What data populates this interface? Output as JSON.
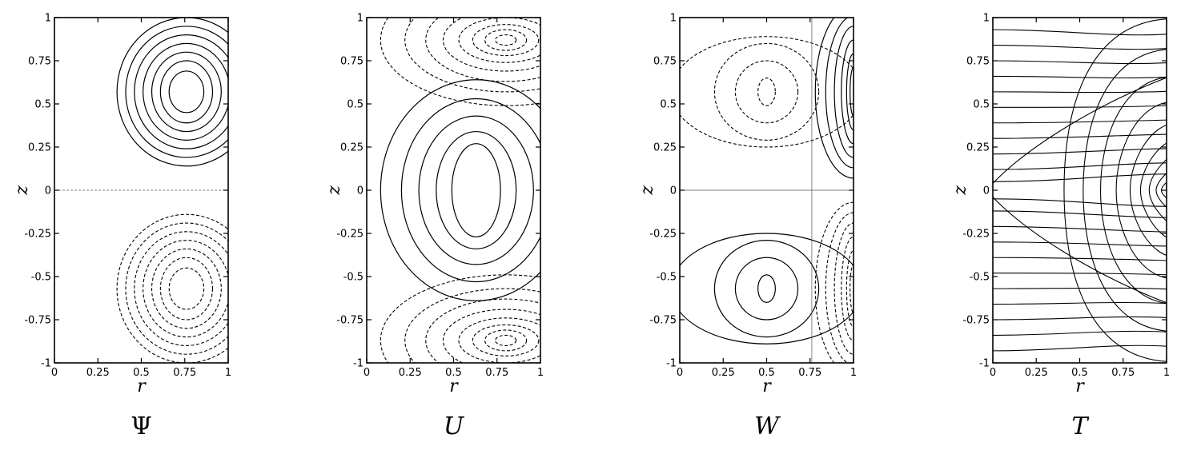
{
  "chart_data": [
    {
      "type": "contour",
      "title": "Ψ",
      "title_italic": false,
      "xlabel": "r",
      "ylabel": "z",
      "xlim": [
        0,
        1
      ],
      "ylim": [
        -1,
        1
      ],
      "xticks": [
        "0",
        "0.25",
        "0.5",
        "0.75",
        "1"
      ],
      "yticks": [
        "1",
        "0.75",
        "0.5",
        "0.25",
        "0",
        "-0.25",
        "-0.5",
        "-0.75",
        "-1"
      ],
      "contour_groups": [
        {
          "kind": "ellipse",
          "style": "solid",
          "cx": 0.76,
          "cy": 0.57,
          "rx": [
            0.4,
            0.35,
            0.3,
            0.25,
            0.2,
            0.15,
            0.1
          ],
          "ry": [
            0.43,
            0.38,
            0.33,
            0.28,
            0.23,
            0.18,
            0.12
          ]
        },
        {
          "kind": "ellipse",
          "style": "dashed",
          "cx": 0.76,
          "cy": -0.57,
          "rx": [
            0.4,
            0.35,
            0.3,
            0.25,
            0.2,
            0.15,
            0.1
          ],
          "ry": [
            0.43,
            0.38,
            0.33,
            0.28,
            0.23,
            0.18,
            0.12
          ]
        },
        {
          "kind": "hline",
          "style": "dashed-thin",
          "y": 0
        }
      ]
    },
    {
      "type": "contour",
      "title": "U",
      "title_italic": true,
      "xlabel": "r",
      "ylabel": "z",
      "xlim": [
        0,
        1
      ],
      "ylim": [
        -1,
        1
      ],
      "xticks": [
        "0",
        "0.25",
        "0.5",
        "0.75",
        "1"
      ],
      "yticks": [
        "1",
        "0.75",
        "0.5",
        "0.25",
        "0",
        "-0.25",
        "-0.5",
        "-0.75",
        "-1"
      ],
      "contour_groups": [
        {
          "kind": "ellipse",
          "style": "solid",
          "cx": 0.63,
          "cy": 0.0,
          "rx": [
            0.55,
            0.43,
            0.33,
            0.23,
            0.14
          ],
          "ry": [
            0.64,
            0.53,
            0.43,
            0.34,
            0.27
          ]
        },
        {
          "kind": "ellipse",
          "style": "dashed",
          "cx": 0.8,
          "cy": 0.87,
          "rx": [
            0.72,
            0.58,
            0.46,
            0.36,
            0.27,
            0.19,
            0.12,
            0.06
          ],
          "ry": [
            0.38,
            0.3,
            0.24,
            0.18,
            0.13,
            0.09,
            0.06,
            0.03
          ]
        },
        {
          "kind": "ellipse",
          "style": "dashed",
          "cx": 0.8,
          "cy": -0.87,
          "rx": [
            0.72,
            0.58,
            0.46,
            0.36,
            0.27,
            0.19,
            0.12,
            0.06
          ],
          "ry": [
            0.38,
            0.3,
            0.24,
            0.18,
            0.13,
            0.09,
            0.06,
            0.03
          ]
        }
      ]
    },
    {
      "type": "contour",
      "title": "W",
      "title_italic": true,
      "xlabel": "r",
      "ylabel": "z",
      "xlim": [
        0,
        1
      ],
      "ylim": [
        -1,
        1
      ],
      "xticks": [
        "0",
        "0.25",
        "0.5",
        "0.75",
        "1"
      ],
      "yticks": [
        "1",
        "0.75",
        "0.5",
        "0.25",
        "0",
        "-0.25",
        "-0.5",
        "-0.75",
        "-1"
      ],
      "contour_groups": [
        {
          "kind": "ellipse",
          "style": "dashed",
          "cx": 0.5,
          "cy": 0.57,
          "rx": [
            0.55,
            0.3,
            0.18,
            0.05
          ],
          "ry": [
            0.32,
            0.28,
            0.18,
            0.08
          ]
        },
        {
          "kind": "ellipse",
          "style": "solid",
          "cx": 0.5,
          "cy": -0.57,
          "rx": [
            0.55,
            0.3,
            0.18,
            0.05
          ],
          "ry": [
            0.32,
            0.28,
            0.18,
            0.08
          ]
        },
        {
          "kind": "ellipse",
          "style": "solid",
          "cx": 1.0,
          "cy": 0.57,
          "rx": [
            0.22,
            0.16,
            0.11,
            0.07,
            0.04,
            0.02
          ],
          "ry": [
            0.5,
            0.44,
            0.38,
            0.3,
            0.22,
            0.14
          ]
        },
        {
          "kind": "ellipse",
          "style": "dashed",
          "cx": 1.0,
          "cy": -0.57,
          "rx": [
            0.22,
            0.16,
            0.11,
            0.07,
            0.04,
            0.02
          ],
          "ry": [
            0.5,
            0.44,
            0.38,
            0.3,
            0.22,
            0.14
          ]
        },
        {
          "kind": "hline",
          "style": "solid-thin",
          "y": 0
        },
        {
          "kind": "vline",
          "style": "solid-thin",
          "x": 0.76
        }
      ]
    },
    {
      "type": "contour",
      "title": "T",
      "title_italic": true,
      "xlabel": "r",
      "ylabel": "z",
      "xlim": [
        0,
        1
      ],
      "ylim": [
        -1,
        1
      ],
      "xticks": [
        "0",
        "0.25",
        "0.5",
        "0.75",
        "1"
      ],
      "yticks": [
        "1",
        "0.75",
        "0.5",
        "0.25",
        "0",
        "-0.25",
        "-0.5",
        "-0.75",
        "-1"
      ],
      "contour_groups": [
        {
          "kind": "isotherms",
          "style": "solid",
          "levels": [
            0.93,
            0.84,
            0.75,
            0.66,
            0.57,
            0.48,
            0.39,
            0.3,
            0.21,
            0.12,
            0.05
          ],
          "bulge_x": [
            0.41,
            0.52,
            0.62,
            0.71,
            0.79,
            0.85,
            0.9,
            0.94,
            0.97
          ]
        }
      ]
    }
  ]
}
